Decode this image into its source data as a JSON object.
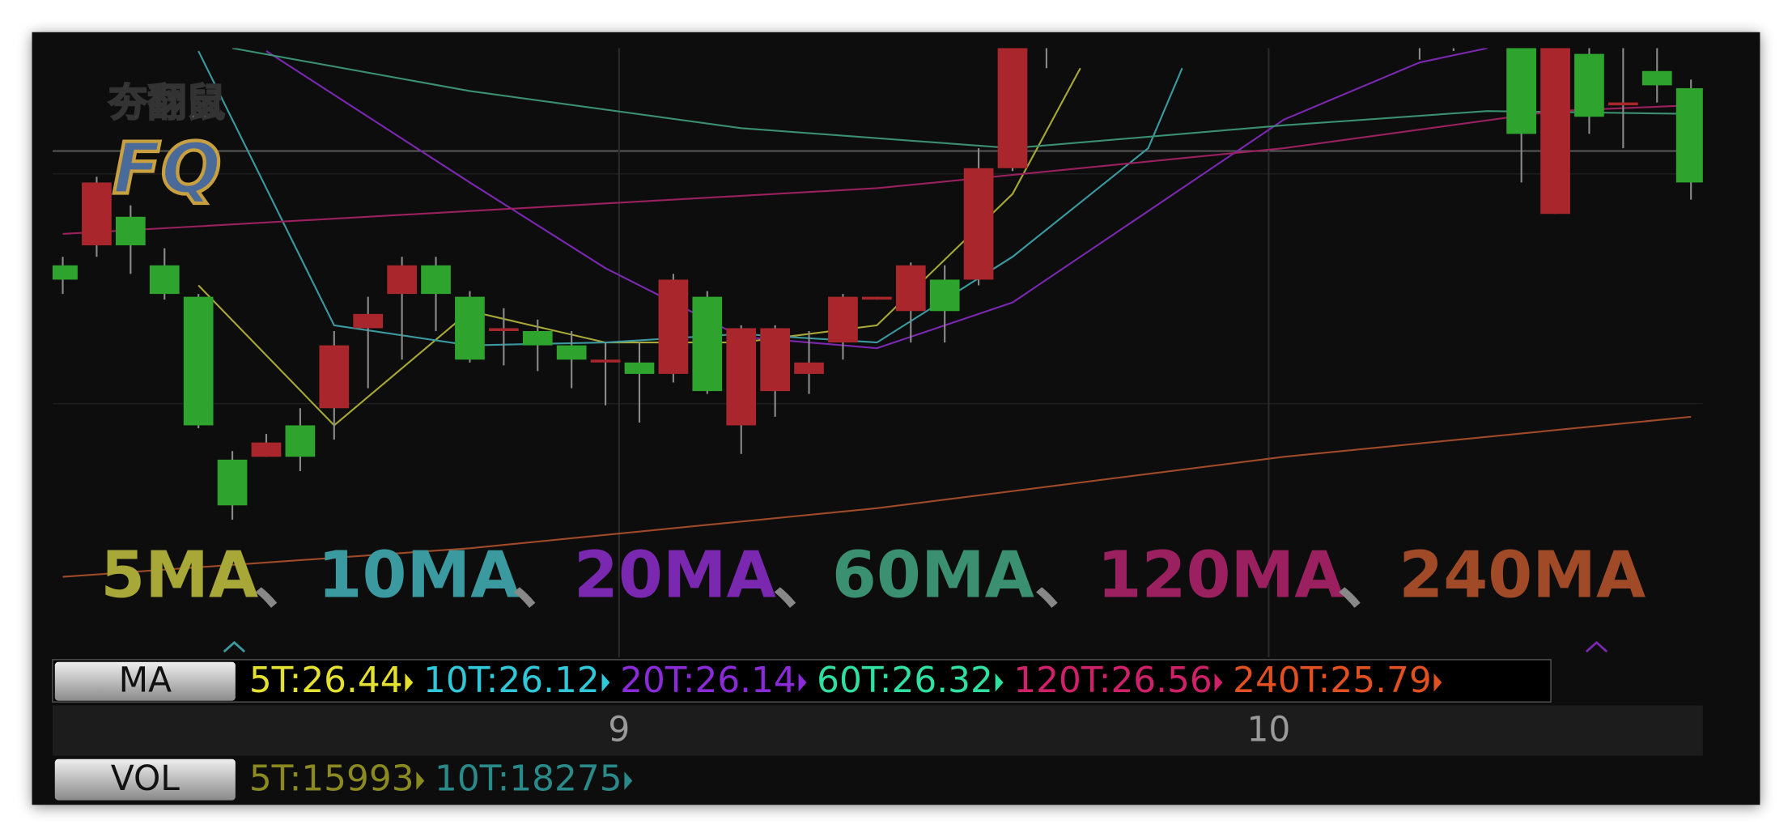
{
  "logo": {
    "name": "夯翻鼠",
    "badge": "FQ"
  },
  "chart_data": {
    "type": "candlestick",
    "xlim": [
      -0.3,
      48.35
    ],
    "ylim": [
      24.8,
      26.9
    ],
    "xticks": [
      {
        "value": 16.4,
        "label": "9"
      },
      {
        "value": 35.55,
        "label": "10"
      }
    ],
    "up_color": "#a8262c",
    "down_color": "#2ea32e",
    "separator": "、",
    "open": [
      26.14,
      26.21,
      26.31,
      26.14,
      26.03,
      25.46,
      25.47,
      25.58,
      25.64,
      25.92,
      26.04,
      26.14,
      26.03,
      25.91,
      25.91,
      25.86,
      25.8,
      25.8,
      25.76,
      26.03,
      25.58,
      25.7,
      25.76,
      25.87,
      26.02,
      25.98,
      26.09,
      26.09,
      26.48,
      27.2,
      null,
      null,
      null,
      null,
      null,
      null,
      null,
      null,
      null,
      null,
      27.3,
      27.3,
      null,
      26.95,
      26.32,
      26.88,
      26.7,
      26.82,
      26.76
    ],
    "high": [
      26.17,
      26.45,
      26.35,
      26.2,
      26.04,
      25.49,
      25.55,
      25.64,
      25.91,
      26.03,
      26.17,
      26.17,
      26.05,
      25.99,
      25.95,
      25.91,
      25.87,
      25.87,
      26.11,
      26.05,
      25.93,
      25.93,
      25.91,
      26.04,
      26.03,
      26.15,
      26.14,
      26.55,
      27.05,
      27.3,
      null,
      null,
      null,
      null,
      null,
      null,
      null,
      null,
      null,
      null,
      27.4,
      27.4,
      null,
      27.0,
      27.0,
      26.95,
      26.95,
      26.95,
      26.79
    ],
    "low": [
      26.04,
      26.17,
      26.11,
      26.02,
      25.57,
      25.25,
      25.47,
      25.42,
      25.53,
      25.71,
      25.81,
      25.91,
      25.8,
      25.79,
      25.77,
      25.71,
      25.65,
      25.59,
      25.73,
      25.69,
      25.48,
      25.61,
      25.69,
      25.81,
      26.02,
      25.87,
      25.87,
      26.07,
      26.47,
      26.83,
      null,
      null,
      null,
      null,
      null,
      null,
      null,
      null,
      null,
      null,
      26.86,
      26.89,
      null,
      26.43,
      26.32,
      26.6,
      26.55,
      26.71,
      26.37
    ],
    "close": [
      26.09,
      26.43,
      26.21,
      26.04,
      25.58,
      25.3,
      25.52,
      25.47,
      25.86,
      25.97,
      26.14,
      26.04,
      25.81,
      25.92,
      25.86,
      25.81,
      25.81,
      25.76,
      26.09,
      25.7,
      25.92,
      25.92,
      25.8,
      26.03,
      26.03,
      26.14,
      25.98,
      26.48,
      26.95,
      27.1,
      null,
      null,
      null,
      null,
      null,
      null,
      null,
      null,
      null,
      null,
      27.2,
      27.2,
      null,
      26.6,
      26.95,
      26.66,
      26.71,
      26.77,
      26.43
    ],
    "series": [
      {
        "name": "5MA",
        "color": "#a8a838",
        "x": [
          4,
          8,
          12,
          16,
          20,
          24,
          28,
          30
        ],
        "values": [
          26.07,
          25.58,
          25.98,
          25.87,
          25.87,
          25.93,
          26.39,
          26.83
        ]
      },
      {
        "name": "10MA",
        "color": "#3a9aa0",
        "x": [
          4,
          8,
          12,
          16,
          20,
          24,
          28,
          32,
          33
        ],
        "values": [
          26.89,
          25.93,
          25.86,
          25.87,
          25.9,
          25.87,
          26.17,
          26.55,
          26.83
        ]
      },
      {
        "name": "20MA",
        "color": "#7a28b0",
        "x": [
          6,
          12,
          16,
          20,
          24,
          28,
          32,
          36,
          40,
          42
        ],
        "values": [
          26.89,
          26.43,
          26.13,
          25.89,
          25.85,
          26.01,
          26.33,
          26.65,
          26.85,
          26.9
        ]
      },
      {
        "name": "60MA",
        "color": "#3a9070",
        "x": [
          5,
          12,
          20,
          28,
          36,
          42,
          48
        ],
        "values": [
          26.9,
          26.75,
          26.62,
          26.55,
          26.63,
          26.68,
          26.67
        ]
      },
      {
        "name": "120MA",
        "color": "#9a2060",
        "x": [
          0,
          12,
          24,
          36,
          44,
          48
        ],
        "values": [
          26.25,
          26.33,
          26.41,
          26.55,
          26.68,
          26.7
        ]
      },
      {
        "name": "240MA",
        "color": "#a04a28",
        "x": [
          0,
          12,
          24,
          36,
          48
        ],
        "values": [
          25.05,
          25.15,
          25.29,
          25.47,
          25.61
        ]
      }
    ]
  },
  "indicator_bar": {
    "label": "MA",
    "items": [
      {
        "text": "5T:26.44",
        "color": "#e4e030"
      },
      {
        "text": "10T:26.12",
        "color": "#30c8d8"
      },
      {
        "text": "20T:26.14",
        "color": "#8a2ad8"
      },
      {
        "text": "60T:26.32",
        "color": "#30e0a0"
      },
      {
        "text": "120T:26.56",
        "color": "#d0206a"
      },
      {
        "text": "240T:25.79",
        "color": "#e05020"
      }
    ]
  },
  "volume_bar": {
    "label": "VOL",
    "items": [
      {
        "text": "5T:15993",
        "color": "#8a8a20"
      },
      {
        "text": "10T:18275",
        "color": "#2a8a8a"
      }
    ]
  }
}
